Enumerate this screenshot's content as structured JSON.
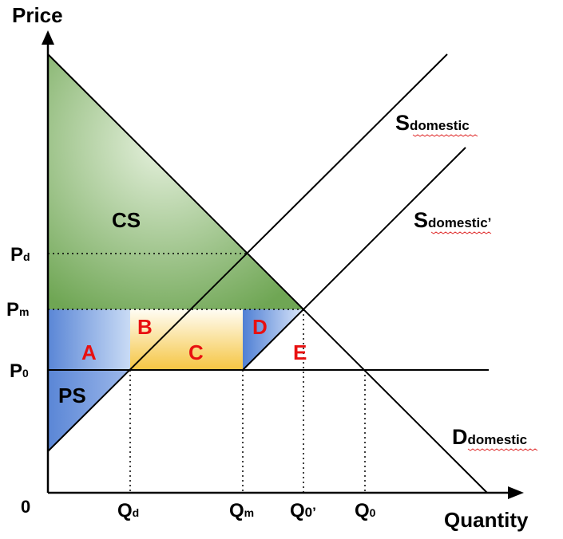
{
  "axes": {
    "y_title": "Price",
    "x_title": "Quantity",
    "origin": "0"
  },
  "price_labels": [
    {
      "main": "P",
      "sub": "d"
    },
    {
      "main": "P",
      "sub": "m"
    },
    {
      "main": "P",
      "sub": "0"
    }
  ],
  "quantity_labels": [
    {
      "main": "Q",
      "sub": "d"
    },
    {
      "main": "Q",
      "sub": "m"
    },
    {
      "main": "Q",
      "sub": "0’"
    },
    {
      "main": "Q",
      "sub": "0"
    }
  ],
  "curves": {
    "supply": {
      "main": "S",
      "sub": "domestic"
    },
    "supply_shifted": {
      "main": "S",
      "sub": "domestic’"
    },
    "demand": {
      "main": "D",
      "sub": "domestic"
    }
  },
  "regions": {
    "cs": "CS",
    "ps": "PS",
    "a": "A",
    "b": "B",
    "c": "C",
    "d": "D",
    "e": "E"
  },
  "colors": {
    "cs_green": "#82b56a",
    "blue": "#5a86d6",
    "yellow": "#f5c542",
    "red_label": "#e81010",
    "red_squiggle": "#e03030"
  }
}
